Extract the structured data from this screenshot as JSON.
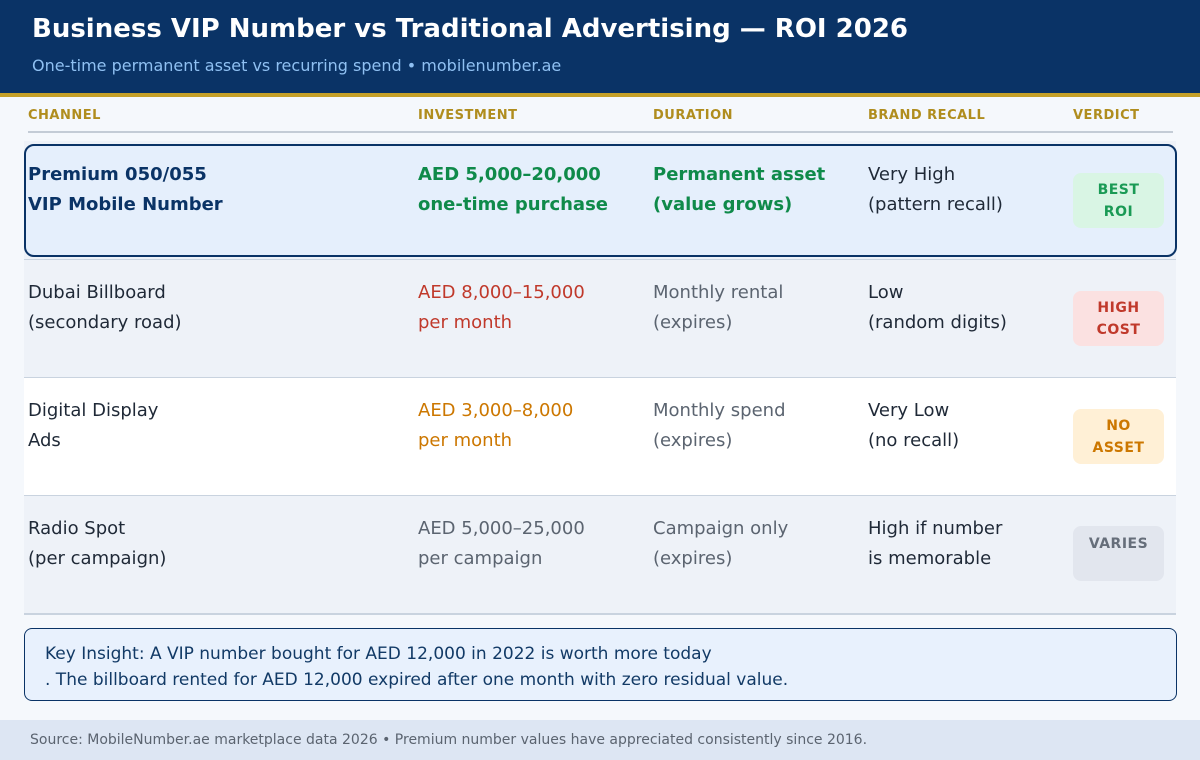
{
  "header": {
    "title": "Business VIP Number vs Traditional Advertising — ROI 2026",
    "subtitle": "One-time permanent asset vs recurring spend  •  mobilenumber.ae"
  },
  "colors": {
    "navy": "#0a3366",
    "gold": "#c5a028",
    "green": "#0f8a4a",
    "red": "#c0392b",
    "orange": "#cc7700"
  },
  "table": {
    "columns": [
      "CHANNEL",
      "INVESTMENT",
      "DURATION",
      "BRAND RECALL",
      "VERDICT"
    ],
    "rows": [
      {
        "channel": [
          "Premium 050/055",
          "VIP Mobile Number"
        ],
        "investment": [
          "AED 5,000–20,000",
          "one-time purchase"
        ],
        "duration": [
          "Permanent asset",
          "(value grows)"
        ],
        "recall": [
          "Very High",
          "(pattern recall)"
        ],
        "verdict": [
          "BEST",
          "ROI"
        ]
      },
      {
        "channel": [
          "Dubai Billboard",
          "(secondary road)"
        ],
        "investment": [
          "AED 8,000–15,000",
          "per month"
        ],
        "duration": [
          "Monthly rental",
          "(expires)"
        ],
        "recall": [
          "Low",
          "(random digits)"
        ],
        "verdict": [
          "HIGH",
          "COST"
        ]
      },
      {
        "channel": [
          "Digital Display",
          "Ads"
        ],
        "investment": [
          "AED 3,000–8,000",
          "per month"
        ],
        "duration": [
          "Monthly spend",
          "(expires)"
        ],
        "recall": [
          "Very Low",
          "(no recall)"
        ],
        "verdict": [
          "NO",
          "ASSET"
        ]
      },
      {
        "channel": [
          "Radio Spot",
          "(per campaign)"
        ],
        "investment": [
          "AED 5,000–25,000",
          "per campaign"
        ],
        "duration": [
          "Campaign only",
          "(expires)"
        ],
        "recall": [
          "High if number",
          "is memorable"
        ],
        "verdict": [
          "VARIES"
        ]
      }
    ]
  },
  "insight": {
    "line1": "Key Insight: A VIP number bought for AED 12,000 in 2022 is worth more today",
    "line2": ".  The billboard rented for AED 12,000 expired after one month with zero residual value."
  },
  "footer": {
    "text": "Source: MobileNumber.ae marketplace data 2026  •  Premium number values have appreciated consistently since 2016."
  }
}
